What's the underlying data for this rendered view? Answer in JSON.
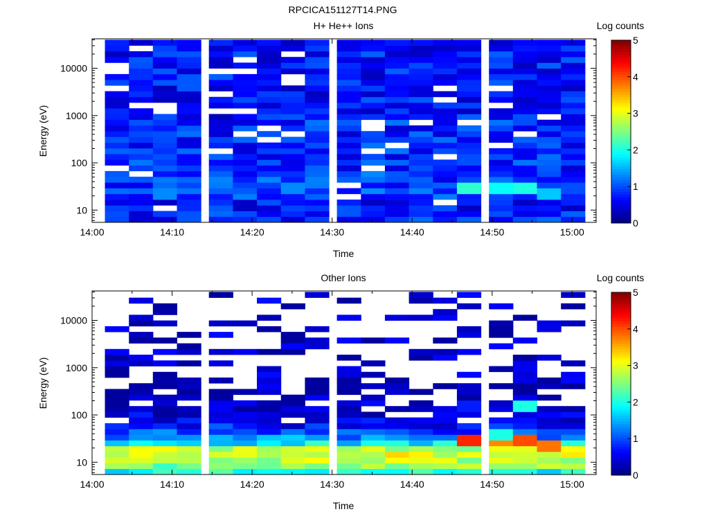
{
  "title": "RPCICA151127T14.PNG",
  "chart_data": [
    {
      "type": "heatmap",
      "title": "H+ He++ Ions",
      "xlabel": "Time",
      "ylabel": "Energy (eV)",
      "y_scale": "log",
      "xlim": [
        "14:00",
        "15:03"
      ],
      "ylim": [
        5.5,
        42000
      ],
      "x_ticks": [
        "14:00",
        "14:10",
        "14:20",
        "14:30",
        "14:40",
        "14:50",
        "15:00"
      ],
      "y_ticks": [
        "10",
        "100",
        "1000",
        "10000"
      ],
      "time_bins": [
        "14:03",
        "14:06",
        "14:09",
        "14:12",
        "14:16",
        "14:19",
        "14:22",
        "14:25",
        "14:28",
        "14:32",
        "14:35",
        "14:38",
        "14:41",
        "14:44",
        "14:47",
        "14:51",
        "14:54",
        "14:57",
        "15:00"
      ],
      "energy_range": [
        5.5,
        40000
      ],
      "energy_bins": 32,
      "baseline_levels": [
        0.8,
        0.8,
        0.7,
        0.7,
        0.9,
        1.0,
        0.9,
        0.9,
        0.9,
        0.8,
        0.8,
        0.8,
        0.8,
        0.8,
        0.8,
        0.8,
        0.8,
        0.8,
        0.7,
        0.7,
        0.7,
        0.7,
        0.7,
        0.7,
        0.7,
        0.7,
        0.7,
        0.7,
        0.7,
        0.7,
        0.7,
        0.7
      ],
      "highlights": [
        {
          "time": "14:47",
          "energy": 30,
          "value": 2.1
        },
        {
          "time": "14:51",
          "energy": 30,
          "value": 1.9
        },
        {
          "time": "14:54",
          "energy": 30,
          "value": 2.0
        },
        {
          "time": "14:57",
          "energy": 22,
          "value": 1.6
        },
        {
          "time": "14:25",
          "energy": 30,
          "value": 1.3
        },
        {
          "time": "14:09",
          "energy": 22,
          "value": 1.3
        }
      ],
      "colorbar": {
        "label": "Log counts",
        "range": [
          0,
          5
        ],
        "ticks": [
          "0",
          "1",
          "2",
          "3",
          "4",
          "5"
        ]
      }
    },
    {
      "type": "heatmap",
      "title": "Other Ions",
      "xlabel": "Time",
      "ylabel": "Energy (eV)",
      "y_scale": "log",
      "xlim": [
        "14:00",
        "15:03"
      ],
      "ylim": [
        5.5,
        42000
      ],
      "x_ticks": [
        "14:00",
        "14:10",
        "14:20",
        "14:30",
        "14:40",
        "14:50",
        "15:00"
      ],
      "y_ticks": [
        "10",
        "100",
        "1000",
        "10000"
      ],
      "time_bins": [
        "14:03",
        "14:06",
        "14:09",
        "14:12",
        "14:16",
        "14:19",
        "14:22",
        "14:25",
        "14:28",
        "14:32",
        "14:35",
        "14:38",
        "14:41",
        "14:44",
        "14:47",
        "14:51",
        "14:54",
        "14:57",
        "15:00"
      ],
      "energy_range": [
        5.5,
        40000
      ],
      "energy_bins": 32,
      "baseline_levels": [
        2.0,
        2.5,
        2.8,
        3.0,
        2.8,
        1.8,
        1.3,
        1.0,
        0.7,
        0.6,
        0.5,
        0.4,
        0.4,
        0.3,
        0.3,
        0.3,
        0.3,
        0.3,
        0.3,
        0.3,
        0.3,
        0.3,
        0.3,
        0.3,
        0.3,
        0.3,
        0.3,
        0.3,
        0.3,
        0.3,
        0.3,
        0.3
      ],
      "fill_probability": [
        1,
        1,
        1,
        1,
        1,
        1,
        1,
        1,
        1,
        0.95,
        0.9,
        0.85,
        0.8,
        0.75,
        0.65,
        0.6,
        0.55,
        0.5,
        0.45,
        0.45,
        0.4,
        0.4,
        0.35,
        0.35,
        0.35,
        0.3,
        0.3,
        0.3,
        0.25,
        0.25,
        0.25,
        0.2
      ],
      "highlights": [
        {
          "time": "14:47",
          "energy": 30,
          "value": 4.2
        },
        {
          "time": "14:51",
          "energy": 30,
          "value": 3.7
        },
        {
          "time": "14:54",
          "energy": 30,
          "value": 4.0
        },
        {
          "time": "14:57",
          "energy": 22,
          "value": 3.8
        },
        {
          "time": "14:51",
          "energy": 40,
          "value": 2.0
        },
        {
          "time": "14:54",
          "energy": 150,
          "value": 2.0
        }
      ],
      "colorbar": {
        "label": "Log counts",
        "range": [
          0,
          5
        ],
        "ticks": [
          "0",
          "1",
          "2",
          "3",
          "4",
          "5"
        ]
      }
    }
  ]
}
